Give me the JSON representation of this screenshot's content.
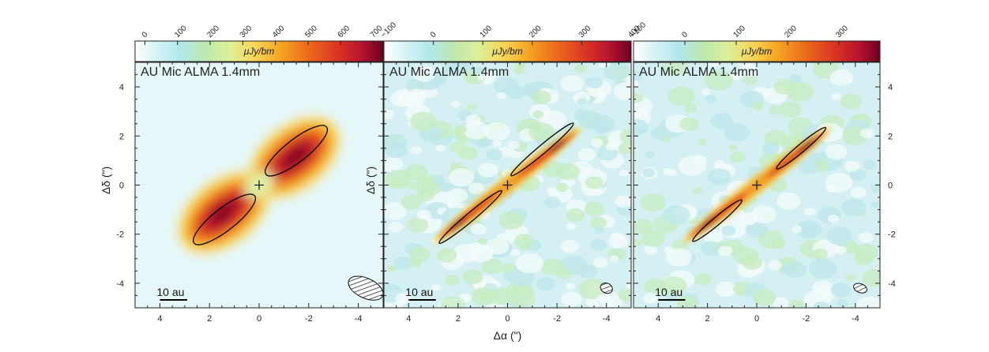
{
  "figure": {
    "x_axis_label": "Δα (\")",
    "y_axis_label": "Δδ (\")"
  },
  "chart_data": [
    {
      "type": "heatmap",
      "title": "AU Mic ALMA 1.4mm",
      "colorbar": {
        "unit": "μJy/bm",
        "range": [
          -30,
          730
        ],
        "ticks": [
          0,
          100,
          200,
          300,
          400,
          500,
          600,
          700
        ]
      },
      "xlim": [
        5,
        -5
      ],
      "ylim": [
        -5,
        5
      ],
      "x_ticks": [
        4,
        2,
        0,
        -2,
        -4
      ],
      "y_ticks": [
        4,
        2,
        0,
        -2,
        -4
      ],
      "show_y_tick_labels": "left",
      "show_x_axis_label": false,
      "show_y_axis_label": true,
      "star_position": [
        0,
        0
      ],
      "disk": {
        "position_angle_deg": 128,
        "inclination_look": "moderate",
        "ansae_peak": [
          [
            -1.8,
            1.6
          ],
          [
            1.8,
            -1.6
          ]
        ],
        "noise": "low"
      },
      "ellipses": [
        {
          "center": [
            -1.5,
            1.4
          ],
          "semi_major": 1.55,
          "semi_minor": 0.45,
          "angle_deg": 38
        },
        {
          "center": [
            1.4,
            -1.4
          ],
          "semi_major": 1.55,
          "semi_minor": 0.45,
          "angle_deg": 38
        }
      ],
      "beam": {
        "center": [
          -4.3,
          -4.2
        ],
        "semi_major": 0.75,
        "semi_minor": 0.4,
        "angle_deg": -25
      },
      "scalebar": {
        "label": "10 au",
        "x_start": 4,
        "x_end": 2.9
      }
    },
    {
      "type": "heatmap",
      "title": "AU Mic ALMA 1.4mm",
      "colorbar": {
        "unit": "μJy/bm",
        "range": [
          -100,
          400
        ],
        "ticks": [
          -100,
          0,
          100,
          200,
          300,
          400
        ]
      },
      "xlim": [
        5,
        -5
      ],
      "ylim": [
        -5,
        5
      ],
      "x_ticks": [
        4,
        2,
        0,
        -2,
        -4
      ],
      "y_ticks": [
        4,
        2,
        0,
        -2,
        -4
      ],
      "show_y_tick_labels": "none",
      "show_x_axis_label": true,
      "show_y_axis_label": true,
      "star_position": [
        0,
        0
      ],
      "disk": {
        "position_angle_deg": 128,
        "inclination_look": "edge-on",
        "noise": "high"
      },
      "ellipses": [
        {
          "center": [
            -1.4,
            1.45
          ],
          "semi_major": 1.65,
          "semi_minor": 0.17,
          "angle_deg": 40
        },
        {
          "center": [
            1.5,
            -1.3
          ],
          "semi_major": 1.65,
          "semi_minor": 0.17,
          "angle_deg": 40
        }
      ],
      "beam": {
        "center": [
          -4.0,
          -4.2
        ],
        "semi_major": 0.25,
        "semi_minor": 0.2,
        "angle_deg": -25
      },
      "scalebar": {
        "label": "10 au",
        "x_start": 4,
        "x_end": 2.9
      }
    },
    {
      "type": "heatmap",
      "title": "AU Mic ALMA 1.4mm",
      "colorbar": {
        "unit": "μJy/bm",
        "range": [
          -100,
          380
        ],
        "ticks": [
          -100,
          0,
          100,
          200,
          300
        ]
      },
      "xlim": [
        5,
        -5
      ],
      "ylim": [
        -5,
        5
      ],
      "x_ticks": [
        4,
        2,
        0,
        -2,
        -4
      ],
      "y_ticks": [
        4,
        2,
        0,
        -2,
        -4
      ],
      "show_y_tick_labels": "right",
      "show_x_axis_label": false,
      "show_y_axis_label": false,
      "star_position": [
        0,
        0
      ],
      "disk": {
        "position_angle_deg": 128,
        "inclination_look": "edge-on",
        "noise": "medium"
      },
      "ellipses": [
        {
          "center": [
            -1.8,
            1.5
          ],
          "semi_major": 1.3,
          "semi_minor": 0.16,
          "angle_deg": 40
        },
        {
          "center": [
            1.6,
            -1.45
          ],
          "semi_major": 1.3,
          "semi_minor": 0.16,
          "angle_deg": 40
        }
      ],
      "beam": {
        "center": [
          -4.2,
          -4.2
        ],
        "semi_major": 0.28,
        "semi_minor": 0.18,
        "angle_deg": -20
      },
      "scalebar": {
        "label": "10 au",
        "x_start": 4,
        "x_end": 2.9
      }
    }
  ]
}
